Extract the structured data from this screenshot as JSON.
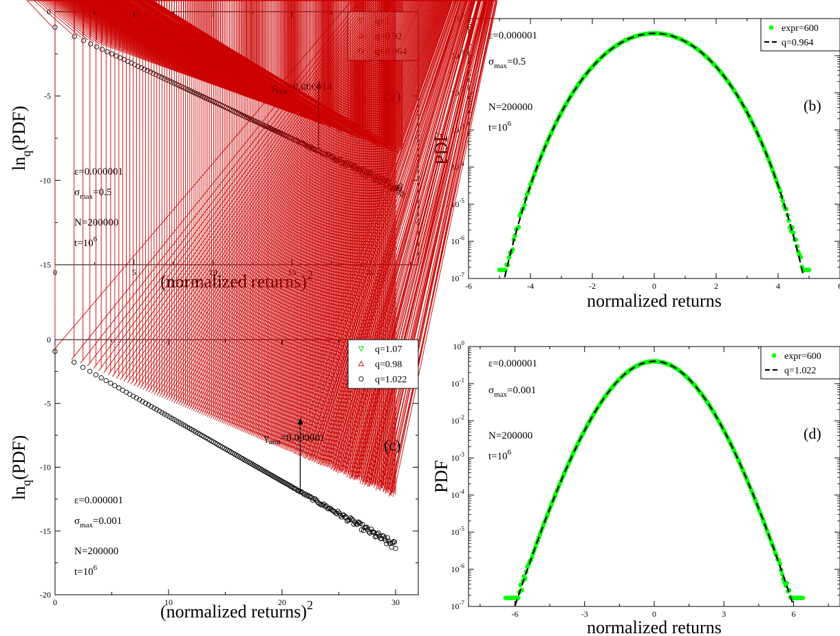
{
  "colors": {
    "q_low": "#00cc00",
    "q_high": "#cc0000",
    "q_mid": "#000000",
    "expr": "#00ff00",
    "fit": "#000000"
  },
  "chart_data": [
    {
      "id": "a",
      "type": "scatter",
      "xlabel_main": "(normalized returns)",
      "xlabel_sup": "2",
      "ylabel_main": "ln",
      "ylabel_sub": "q",
      "ylabel_rest": "(PDF)",
      "xlim": [
        0,
        23
      ],
      "ylim": [
        -15,
        0
      ],
      "xticks": [
        0,
        5,
        10,
        15,
        20
      ],
      "yticks": [
        0,
        -5,
        -10,
        -15
      ],
      "xtick_labels": [
        "0",
        "5",
        "10",
        "15",
        "20"
      ],
      "ytick_labels": [
        "0",
        "-5",
        "-10",
        "-15"
      ],
      "series": [
        {
          "name": "q=1",
          "marker": "triangle-down",
          "color": "q_low",
          "x0": 0.0,
          "x1": 22.0,
          "y0": -0.92,
          "y1": -13.5,
          "noise_start": 15.0,
          "noise": 0.35
        },
        {
          "name": "q=0.92",
          "marker": "triangle-up",
          "color": "q_high",
          "x0": 0.0,
          "x1": 22.0,
          "y0": -0.92,
          "y1": -8.3,
          "noise_start": 16.0,
          "noise": 0.18
        },
        {
          "name": "q=0.964",
          "marker": "circle",
          "color": "q_mid",
          "x0": 0.0,
          "x1": 22.0,
          "y0": -0.92,
          "y1": -10.6,
          "noise_start": 15.0,
          "noise": 0.28
        }
      ],
      "panel_tag": "(a)",
      "annotations": {
        "arrow": {
          "x": 16.7,
          "y_from": -8.2,
          "y_to": -4.1
        },
        "gamma": {
          "symbol": "γ",
          "sub": "min",
          "value": "=0.000014"
        },
        "epsilon": "ε=0.000001",
        "sigma": {
          "symbol": "σ",
          "sub": "max",
          "value": "=0.5"
        },
        "n": "N=200000",
        "t": {
          "base": "t=10",
          "sup": "6"
        }
      }
    },
    {
      "id": "b",
      "type": "scatter",
      "xlabel_main": "normalized returns",
      "ylabel_main": "PDF",
      "log_y": true,
      "xlim": [
        -6,
        6
      ],
      "ylim": [
        1e-07,
        1
      ],
      "xticks": [
        -6,
        -4,
        -2,
        0,
        2,
        4,
        6
      ],
      "xtick_labels": [
        "-6",
        "-4",
        "-2",
        "0",
        "2",
        "4",
        "6"
      ],
      "ytick_exponents": [
        0,
        -1,
        -2,
        -3,
        -4,
        -5,
        -6,
        -7
      ],
      "q": 0.964,
      "beta": 0.5,
      "scatter_range": [
        -5.0,
        5.0
      ],
      "series": [
        {
          "name": "expr=600",
          "marker": "dot",
          "color": "expr"
        },
        {
          "name": "q=0.964",
          "marker": "dash-line",
          "color": "fit"
        }
      ],
      "panel_tag": "(b)",
      "annotations": {
        "epsilon": "ε=0.000001",
        "sigma": {
          "symbol": "σ",
          "sub": "max",
          "value": "=0.5"
        },
        "n": "N=200000",
        "t": {
          "base": "t=10",
          "sup": "6"
        }
      }
    },
    {
      "id": "c",
      "type": "scatter",
      "xlabel_main": "(normalized returns)",
      "xlabel_sup": "2",
      "ylabel_main": "ln",
      "ylabel_sub": "q",
      "ylabel_rest": "(PDF)",
      "xlim": [
        0,
        32
      ],
      "ylim": [
        -20,
        0
      ],
      "xticks": [
        0,
        10,
        20,
        30
      ],
      "yticks": [
        0,
        -5,
        -10,
        -15,
        -20
      ],
      "xtick_labels": [
        "0",
        "10",
        "20",
        "30"
      ],
      "ytick_labels": [
        "0",
        "-5",
        "-10",
        "-15",
        "-20"
      ],
      "series": [
        {
          "name": "q=1.07",
          "marker": "triangle-down",
          "color": "q_low",
          "x0": 0.0,
          "x1": 27.0,
          "y0": -0.92,
          "y1": -19.8,
          "noise_start": 18.0,
          "noise": 0.45
        },
        {
          "name": "q=0.98",
          "marker": "triangle-up",
          "color": "q_high",
          "x0": 0.0,
          "x1": 30.0,
          "y0": -0.92,
          "y1": -12.2,
          "noise_start": 20.0,
          "noise": 0.25
        },
        {
          "name": "q=1.022",
          "marker": "circle",
          "color": "q_mid",
          "x0": 0.0,
          "x1": 30.0,
          "y0": -0.92,
          "y1": -16.2,
          "noise_start": 20.0,
          "noise": 0.35
        }
      ],
      "panel_tag": "(c)",
      "annotations": {
        "arrow": {
          "x": 21.6,
          "y_from": -12.0,
          "y_to": -6.1
        },
        "gamma": {
          "symbol": "γ",
          "sub": "min",
          "value": "=0.000001"
        },
        "epsilon": "ε=0.000001",
        "sigma": {
          "symbol": "σ",
          "sub": "max",
          "value": "=0.001"
        },
        "n": "N=200000",
        "t": {
          "base": "t=10",
          "sup": "6"
        }
      }
    },
    {
      "id": "d",
      "type": "scatter",
      "xlabel_main": "normalized returns",
      "ylabel_main": "PDF",
      "log_y": true,
      "xlim": [
        -8,
        8
      ],
      "ylim": [
        1e-07,
        1
      ],
      "xticks": [
        -6,
        -3,
        0,
        3,
        6
      ],
      "xtick_labels": [
        "-6",
        "-3",
        "0",
        "3",
        "6"
      ],
      "ytick_exponents": [
        0,
        -1,
        -2,
        -3,
        -4,
        -5,
        -6,
        -7
      ],
      "q": 1.022,
      "beta": 0.5,
      "scatter_range": [
        -6.4,
        6.4
      ],
      "series": [
        {
          "name": "expr=600",
          "marker": "dot",
          "color": "expr"
        },
        {
          "name": "q=1.022",
          "marker": "dash-line",
          "color": "fit"
        }
      ],
      "panel_tag": "(d)",
      "annotations": {
        "epsilon": "ε=0.000001",
        "sigma": {
          "symbol": "σ",
          "sub": "max",
          "value": "=0.001"
        },
        "n": "N=200000",
        "t": {
          "base": "t=10",
          "sup": "6"
        }
      }
    }
  ]
}
